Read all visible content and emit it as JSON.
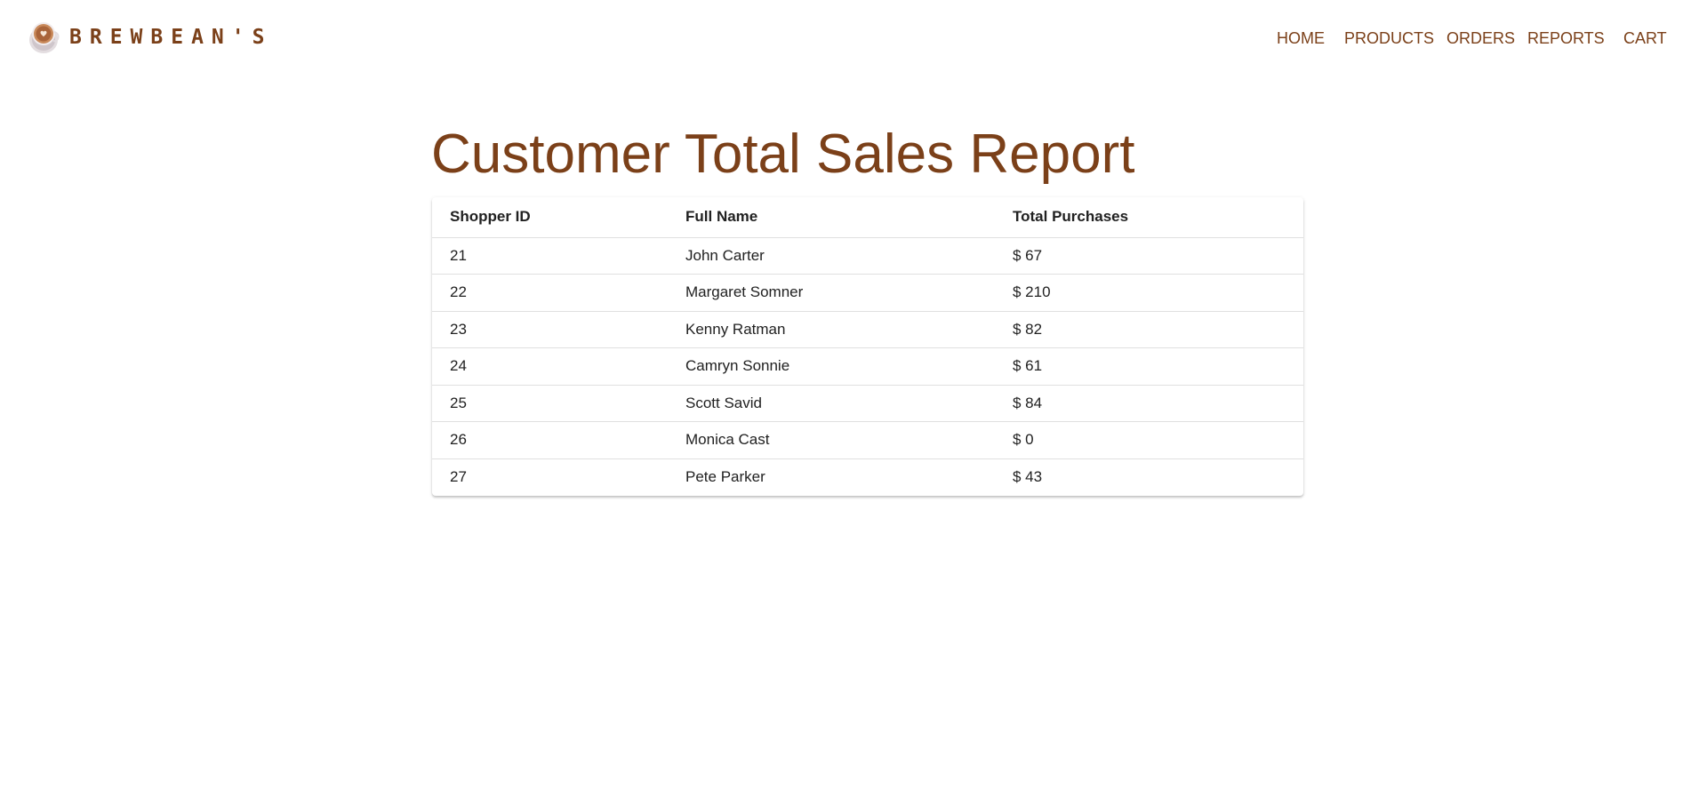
{
  "brand": {
    "name": "BREWBEAN'S"
  },
  "nav": {
    "home": "HOME",
    "products": "PRODUCTS",
    "orders": "ORDERS",
    "reports": "REPORTS",
    "cart": "CART"
  },
  "page": {
    "title": "Customer Total Sales Report"
  },
  "table": {
    "headers": [
      "Shopper ID",
      "Full Name",
      "Total Purchases"
    ],
    "rows": [
      {
        "id": "21",
        "name": "John Carter",
        "total": "$ 67"
      },
      {
        "id": "22",
        "name": "Margaret Somner",
        "total": "$ 210"
      },
      {
        "id": "23",
        "name": "Kenny Ratman",
        "total": "$ 82"
      },
      {
        "id": "24",
        "name": "Camryn Sonnie",
        "total": "$ 61"
      },
      {
        "id": "25",
        "name": "Scott Savid",
        "total": "$ 84"
      },
      {
        "id": "26",
        "name": "Monica Cast",
        "total": "$ 0"
      },
      {
        "id": "27",
        "name": "Pete Parker",
        "total": "$ 43"
      }
    ]
  },
  "colors": {
    "brand_brown": "#7b4019",
    "text": "#212121",
    "divider": "#e0e0e0"
  },
  "icons": {
    "logo": "coffee-cup-latte-art-icon"
  }
}
